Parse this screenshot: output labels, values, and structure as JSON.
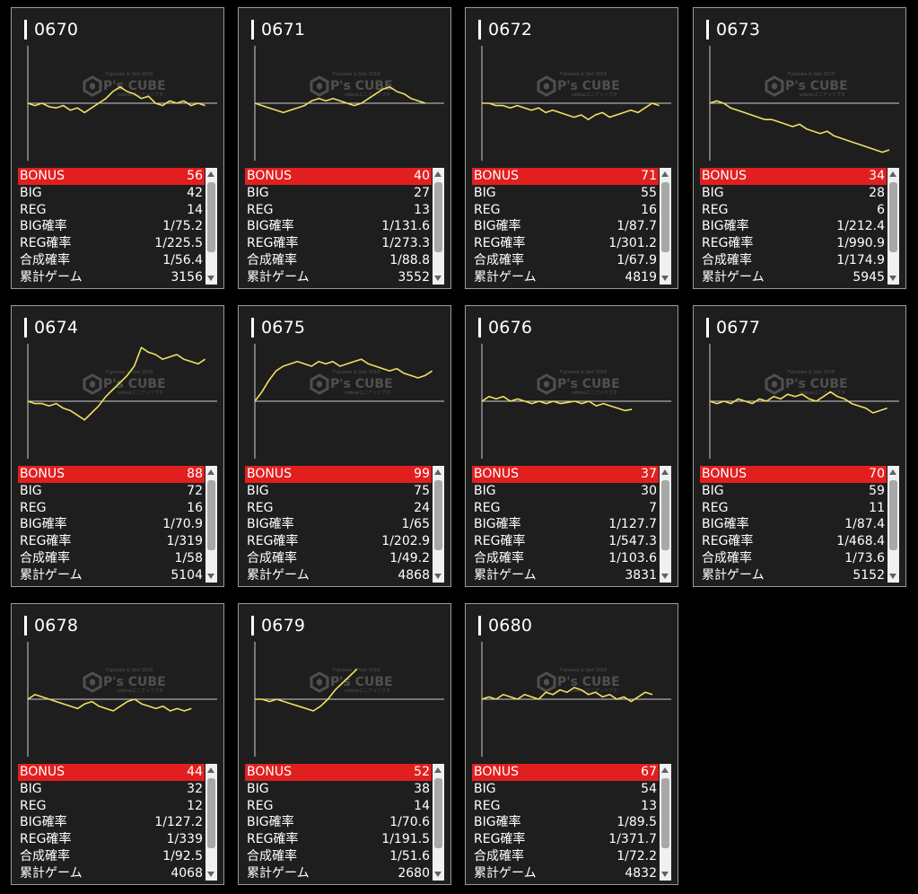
{
  "watermark": {
    "brand": "P's CUBE",
    "top_line": "Fujisawa & Slot 2018",
    "bottom_line": "sideseエニアッツブタ"
  },
  "colors": {
    "graph_line": "#f0e060",
    "bonus_row": "#e21f1f",
    "card_bg": "#1e1e1e",
    "card_border": "#9a9a9a"
  },
  "labels": {
    "bonus": "BONUS",
    "big": "BIG",
    "reg": "REG",
    "big_rate": "BIG確率",
    "reg_rate": "REG確率",
    "total_rate": "合成確率",
    "games": "累計ゲーム"
  },
  "machines": [
    {
      "id": "0670",
      "bonus": "56",
      "big": "42",
      "reg": "14",
      "big_rate": "1/75.2",
      "reg_rate": "1/225.5",
      "total_rate": "1/56.4",
      "games": "3156",
      "graph": [
        0,
        -2,
        0,
        -3,
        -4,
        -2,
        -6,
        -4,
        -8,
        -4,
        0,
        4,
        10,
        14,
        10,
        8,
        4,
        6,
        0,
        -2,
        2,
        0,
        2,
        -2,
        0,
        -2
      ]
    },
    {
      "id": "0671",
      "bonus": "40",
      "big": "27",
      "reg": "13",
      "big_rate": "1/131.6",
      "reg_rate": "1/273.3",
      "total_rate": "1/88.8",
      "games": "3552",
      "graph": [
        0,
        -2,
        -4,
        -6,
        -8,
        -6,
        -4,
        -2,
        2,
        4,
        2,
        4,
        2,
        0,
        -2,
        0,
        4,
        8,
        12,
        14,
        10,
        8,
        4,
        2,
        0
      ]
    },
    {
      "id": "0672",
      "bonus": "71",
      "big": "55",
      "reg": "16",
      "big_rate": "1/87.7",
      "reg_rate": "1/301.2",
      "total_rate": "1/67.9",
      "games": "4819",
      "graph": [
        0,
        0,
        -2,
        -2,
        -4,
        -2,
        -4,
        -6,
        -4,
        -8,
        -6,
        -8,
        -10,
        -12,
        -10,
        -14,
        -10,
        -8,
        -12,
        -10,
        -8,
        -6,
        -8,
        -4,
        0,
        -2
      ]
    },
    {
      "id": "0673",
      "bonus": "34",
      "big": "28",
      "reg": "6",
      "big_rate": "1/212.4",
      "reg_rate": "1/990.9",
      "total_rate": "1/174.9",
      "games": "5945",
      "graph": [
        0,
        2,
        0,
        -4,
        -6,
        -8,
        -10,
        -12,
        -14,
        -14,
        -16,
        -18,
        -20,
        -18,
        -22,
        -24,
        -26,
        -24,
        -28,
        -30,
        -32,
        -34,
        -36,
        -38,
        -40,
        -42,
        -40
      ]
    },
    {
      "id": "0674",
      "bonus": "88",
      "big": "72",
      "reg": "16",
      "big_rate": "1/70.9",
      "reg_rate": "1/319",
      "total_rate": "1/58",
      "games": "5104",
      "graph": [
        0,
        -2,
        -2,
        -4,
        -2,
        -6,
        -8,
        -12,
        -16,
        -10,
        -4,
        4,
        10,
        16,
        22,
        30,
        46,
        42,
        40,
        36,
        38,
        40,
        36,
        34,
        32,
        36
      ]
    },
    {
      "id": "0675",
      "bonus": "99",
      "big": "75",
      "reg": "24",
      "big_rate": "1/65",
      "reg_rate": "1/202.9",
      "total_rate": "1/49.2",
      "games": "4868",
      "graph": [
        0,
        8,
        18,
        26,
        30,
        32,
        34,
        32,
        30,
        34,
        32,
        34,
        30,
        32,
        34,
        36,
        32,
        30,
        28,
        26,
        28,
        24,
        22,
        20,
        22,
        26
      ]
    },
    {
      "id": "0676",
      "bonus": "37",
      "big": "30",
      "reg": "7",
      "big_rate": "1/127.7",
      "reg_rate": "1/547.3",
      "total_rate": "1/103.6",
      "games": "3831",
      "graph": [
        0,
        4,
        2,
        4,
        0,
        2,
        0,
        -2,
        0,
        -2,
        0,
        -2,
        -1,
        0,
        -2,
        0,
        -4,
        -2,
        -4,
        -6,
        -8,
        -7
      ]
    },
    {
      "id": "0677",
      "bonus": "70",
      "big": "59",
      "reg": "11",
      "big_rate": "1/87.4",
      "reg_rate": "1/468.4",
      "total_rate": "1/73.6",
      "games": "5152",
      "graph": [
        0,
        -2,
        0,
        -2,
        2,
        0,
        -2,
        2,
        0,
        4,
        2,
        6,
        4,
        6,
        2,
        0,
        4,
        8,
        4,
        2,
        -2,
        -4,
        -6,
        -10,
        -8,
        -6
      ]
    },
    {
      "id": "0678",
      "bonus": "44",
      "big": "32",
      "reg": "12",
      "big_rate": "1/127.2",
      "reg_rate": "1/339",
      "total_rate": "1/92.5",
      "games": "4068",
      "graph": [
        0,
        4,
        2,
        0,
        -2,
        -4,
        -6,
        -8,
        -4,
        -2,
        -6,
        -8,
        -10,
        -6,
        -2,
        0,
        -4,
        -6,
        -8,
        -6,
        -10,
        -8,
        -10,
        -8
      ]
    },
    {
      "id": "0679",
      "bonus": "52",
      "big": "38",
      "reg": "14",
      "big_rate": "1/70.6",
      "reg_rate": "1/191.5",
      "total_rate": "1/51.6",
      "games": "2680",
      "graph": [
        0,
        0,
        -2,
        0,
        -2,
        -4,
        -6,
        -8,
        -10,
        -6,
        0,
        8,
        14,
        20,
        26
      ]
    },
    {
      "id": "0680",
      "bonus": "67",
      "big": "54",
      "reg": "13",
      "big_rate": "1/89.5",
      "reg_rate": "1/371.7",
      "total_rate": "1/72.2",
      "games": "4832",
      "graph": [
        0,
        2,
        0,
        4,
        2,
        0,
        4,
        2,
        0,
        6,
        4,
        8,
        6,
        10,
        8,
        4,
        6,
        2,
        4,
        0,
        2,
        -2,
        2,
        6,
        4
      ]
    }
  ]
}
